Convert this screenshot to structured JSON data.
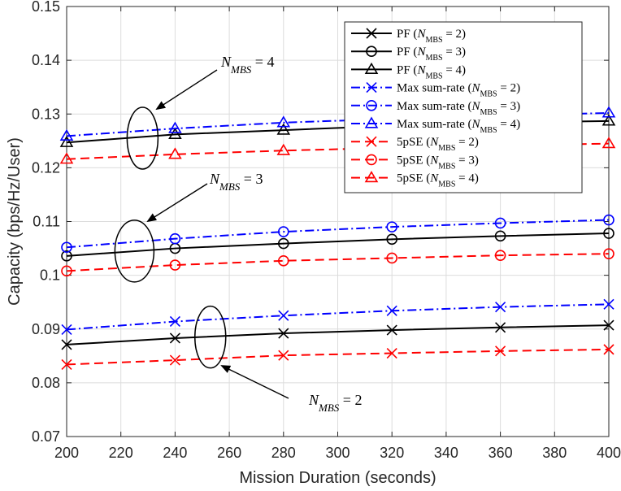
{
  "chart_data": {
    "type": "line",
    "title": "",
    "xlabel": "Mission Duration (seconds)",
    "ylabel": "Capacity (bps/Hz/User)",
    "xlim": [
      200,
      400
    ],
    "ylim": [
      0.07,
      0.15
    ],
    "xticks": [
      200,
      220,
      240,
      260,
      280,
      300,
      320,
      340,
      360,
      380,
      400
    ],
    "xtick_labels": [
      "200",
      "220",
      "240",
      "260",
      "280",
      "300",
      "320",
      "340",
      "360",
      "380",
      "400"
    ],
    "yticks": [
      0.07,
      0.08,
      0.09,
      0.1,
      0.11,
      0.12,
      0.13,
      0.14,
      0.15
    ],
    "ytick_labels": [
      "0.07",
      "0.08",
      "0.09",
      "0.1",
      "0.11",
      "0.12",
      "0.13",
      "0.14",
      "0.15"
    ],
    "grid": true,
    "legend_position": "top-right",
    "x": [
      200,
      240,
      280,
      320,
      360,
      400
    ],
    "series": [
      {
        "name": "PF (N_MBS = 2)",
        "legend_prefix": "PF (",
        "legend_value": "2",
        "color": "#000000",
        "dash": "solid",
        "marker": "x",
        "values": [
          0.0871,
          0.0883,
          0.0892,
          0.0898,
          0.0903,
          0.0907
        ]
      },
      {
        "name": "PF (N_MBS = 3)",
        "legend_prefix": "PF (",
        "legend_value": "3",
        "color": "#000000",
        "dash": "solid",
        "marker": "circle",
        "values": [
          0.1036,
          0.105,
          0.1059,
          0.1067,
          0.1073,
          0.1078
        ]
      },
      {
        "name": "PF (N_MBS = 4)",
        "legend_prefix": "PF (",
        "legend_value": "4",
        "color": "#000000",
        "dash": "solid",
        "marker": "triangle",
        "values": [
          0.1247,
          0.1262,
          0.127,
          0.1278,
          0.1284,
          0.1287
        ]
      },
      {
        "name": "Max sum-rate (N_MBS = 2)",
        "legend_prefix": "Max sum-rate (",
        "legend_value": "2",
        "color": "#0000ff",
        "dash": "dashdot",
        "marker": "x",
        "values": [
          0.0899,
          0.0914,
          0.0925,
          0.0934,
          0.0941,
          0.0946
        ]
      },
      {
        "name": "Max sum-rate (N_MBS = 3)",
        "legend_prefix": "Max sum-rate (",
        "legend_value": "3",
        "color": "#0000ff",
        "dash": "dashdot",
        "marker": "circle",
        "values": [
          0.1052,
          0.1068,
          0.1081,
          0.109,
          0.1097,
          0.1103
        ]
      },
      {
        "name": "Max sum-rate (N_MBS = 4)",
        "legend_prefix": "Max sum-rate (",
        "legend_value": "4",
        "color": "#0000ff",
        "dash": "dashdot",
        "marker": "triangle",
        "values": [
          0.1259,
          0.1273,
          0.1284,
          0.1291,
          0.1297,
          0.1302
        ]
      },
      {
        "name": "5pSE (N_MBS = 2)",
        "legend_prefix": "5pSE (",
        "legend_value": "2",
        "color": "#ff0000",
        "dash": "dashed",
        "marker": "x",
        "values": [
          0.0834,
          0.0842,
          0.0851,
          0.0855,
          0.0859,
          0.0862
        ]
      },
      {
        "name": "5pSE (N_MBS = 3)",
        "legend_prefix": "5pSE (",
        "legend_value": "3",
        "color": "#ff0000",
        "dash": "dashed",
        "marker": "circle",
        "values": [
          0.1008,
          0.1019,
          0.1027,
          0.1032,
          0.1037,
          0.104
        ]
      },
      {
        "name": "5pSE (N_MBS = 4)",
        "legend_prefix": "5pSE (",
        "legend_value": "4",
        "color": "#ff0000",
        "dash": "dashed",
        "marker": "triangle",
        "values": [
          0.1216,
          0.1225,
          0.1232,
          0.1237,
          0.1241,
          0.1245
        ]
      }
    ],
    "legend_symbol": "N",
    "legend_subscript": "MBS",
    "legend_equals": " = ",
    "legend_suffix": ")",
    "annotations": [
      {
        "var": "N",
        "sub": "MBS",
        "rest": " = 4",
        "target_x": 228,
        "target_y": 0.1255
      },
      {
        "var": "N",
        "sub": "MBS",
        "rest": " = 3",
        "target_x": 225,
        "target_y": 0.1045
      },
      {
        "var": "N",
        "sub": "MBS",
        "rest": " = 2",
        "target_x": 253,
        "target_y": 0.0885
      }
    ]
  }
}
